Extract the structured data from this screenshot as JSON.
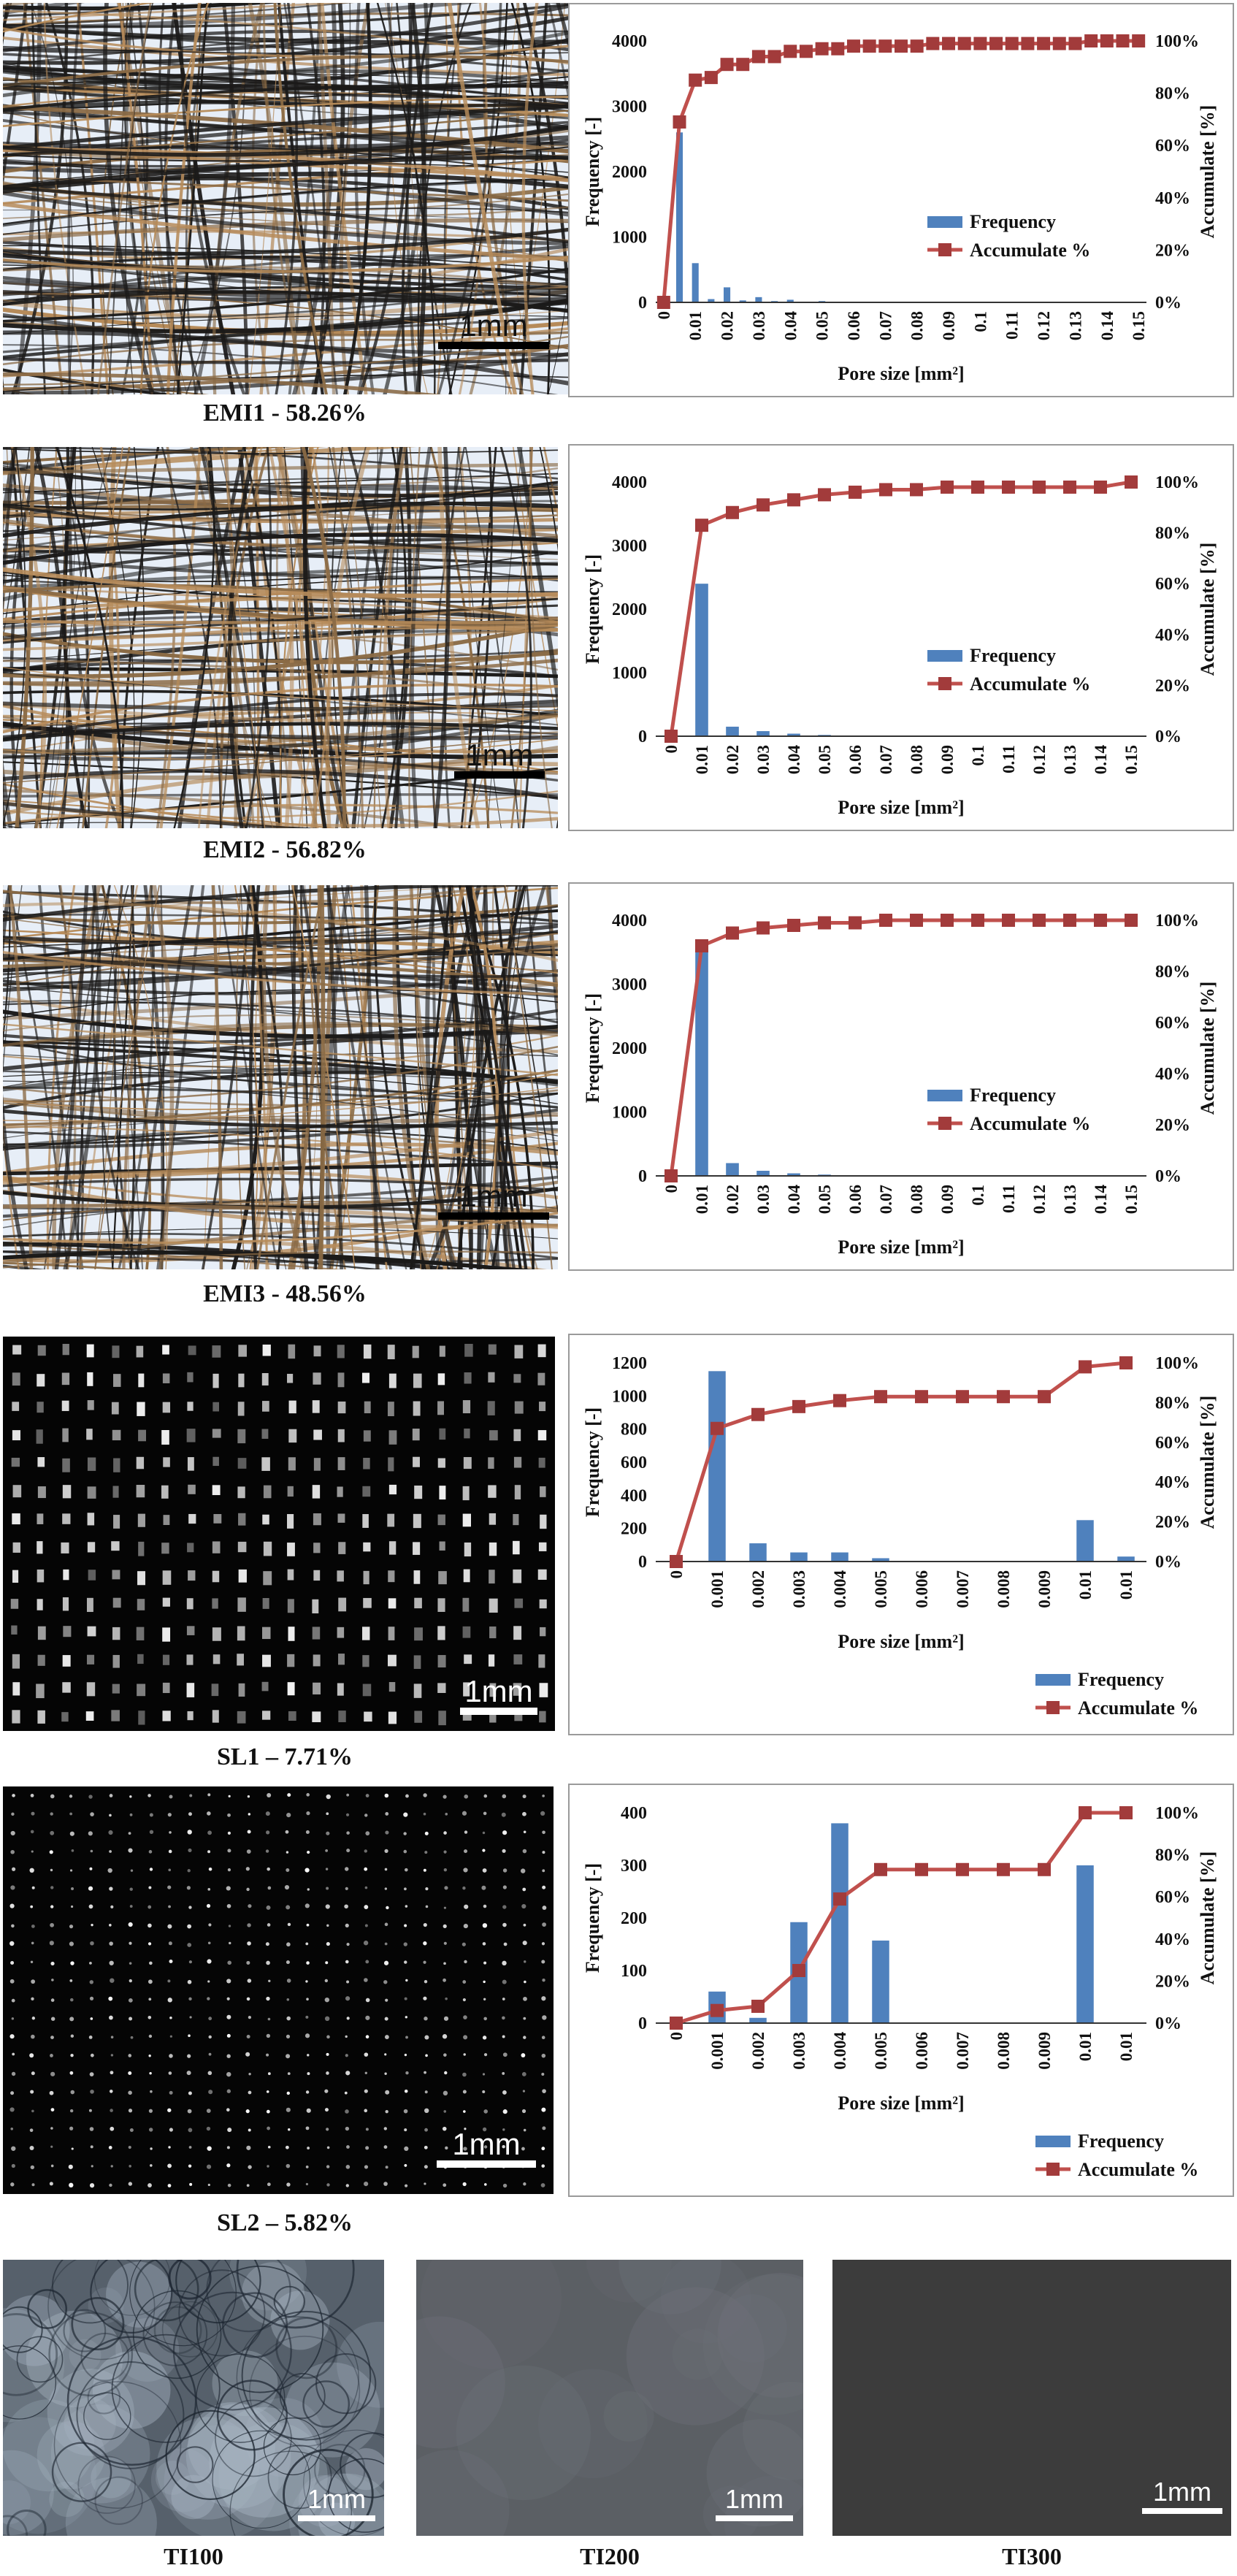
{
  "scale_label": "1mm",
  "axis_labels": {
    "left": "Frequency [-]",
    "right": "Accumulate [%]",
    "x": "Pore size [mm²]"
  },
  "legend": {
    "bar": "Frequency",
    "line": "Accumulate %"
  },
  "colors": {
    "bar": "#4f81bd",
    "line": "#c0504d",
    "marker": "#a23b3b",
    "frame": "#9a9a9a"
  },
  "panels": [
    {
      "caption": "EMI1 - 58.26%",
      "photo_style": "fiber-light",
      "chart_data": {
        "type": "bar+line",
        "categories": [
          "0",
          "0.01",
          "0.01",
          "0.02",
          "0.02",
          "0.03",
          "0.03",
          "0.04",
          "0.04",
          "0.05",
          "0.05",
          "0.06",
          "0.06",
          "0.07",
          "0.07",
          "0.08",
          "0.08",
          "0.09",
          "0.09",
          "0.1",
          "0.1",
          "0.11",
          "0.11",
          "0.12",
          "0.12",
          "0.13",
          "0.13",
          "0.14",
          "0.14",
          "0.15",
          "0.15"
        ],
        "tick_labels": [
          "0",
          "0.01",
          "0.02",
          "0.03",
          "0.04",
          "0.05",
          "0.06",
          "0.07",
          "0.08",
          "0.09",
          "0.1",
          "0.11",
          "0.12",
          "0.13",
          "0.14",
          "0.15"
        ],
        "series": [
          {
            "name": "Frequency",
            "axis": "left",
            "values": [
              0,
              2600,
              600,
              50,
              230,
              30,
              80,
              20,
              40,
              10,
              20,
              5,
              10,
              5,
              5,
              5,
              5,
              5,
              5,
              5,
              5,
              5,
              5,
              5,
              5,
              5,
              5,
              5,
              5,
              5,
              5
            ]
          },
          {
            "name": "Accumulate %",
            "axis": "right",
            "values": [
              0,
              69,
              85,
              86,
              91,
              91,
              94,
              94,
              96,
              96,
              97,
              97,
              98,
              98,
              98,
              98,
              98,
              99,
              99,
              99,
              99,
              99,
              99,
              99,
              99,
              99,
              99,
              100,
              100,
              100,
              100
            ]
          }
        ],
        "ylim_left": [
          0,
          4000
        ],
        "yticks_left": [
          0,
          1000,
          2000,
          3000,
          4000
        ],
        "ylim_right": [
          0,
          100
        ],
        "yticks_right": [
          0,
          20,
          40,
          60,
          80,
          100
        ],
        "legend_position": "bottom-right"
      }
    },
    {
      "caption": "EMI2 - 56.82%",
      "photo_style": "fiber-light",
      "chart_data": {
        "type": "bar+line",
        "categories": [
          "0",
          "0.01",
          "0.02",
          "0.03",
          "0.04",
          "0.05",
          "0.06",
          "0.07",
          "0.08",
          "0.09",
          "0.1",
          "0.11",
          "0.12",
          "0.13",
          "0.14",
          "0.15"
        ],
        "tick_labels": [
          "0",
          "0.01",
          "0.02",
          "0.03",
          "0.04",
          "0.05",
          "0.06",
          "0.07",
          "0.08",
          "0.09",
          "0.1",
          "0.11",
          "0.12",
          "0.13",
          "0.14",
          "0.15"
        ],
        "series": [
          {
            "name": "Frequency",
            "axis": "left",
            "values": [
              0,
              2400,
              150,
              80,
              40,
              20,
              10,
              5,
              5,
              5,
              5,
              5,
              5,
              5,
              5,
              5
            ]
          },
          {
            "name": "Accumulate %",
            "axis": "right",
            "values": [
              0,
              83,
              88,
              91,
              93,
              95,
              96,
              97,
              97,
              98,
              98,
              98,
              98,
              98,
              98,
              100
            ]
          }
        ],
        "ylim_left": [
          0,
          4000
        ],
        "yticks_left": [
          0,
          1000,
          2000,
          3000,
          4000
        ],
        "ylim_right": [
          0,
          100
        ],
        "yticks_right": [
          0,
          20,
          40,
          60,
          80,
          100
        ],
        "legend_position": "bottom-right"
      }
    },
    {
      "caption": "EMI3 - 48.56%",
      "photo_style": "fiber-light",
      "chart_data": {
        "type": "bar+line",
        "categories": [
          "0",
          "0.01",
          "0.02",
          "0.03",
          "0.04",
          "0.05",
          "0.06",
          "0.07",
          "0.08",
          "0.09",
          "0.1",
          "0.11",
          "0.12",
          "0.13",
          "0.14",
          "0.15"
        ],
        "tick_labels": [
          "0",
          "0.01",
          "0.02",
          "0.03",
          "0.04",
          "0.05",
          "0.06",
          "0.07",
          "0.08",
          "0.09",
          "0.1",
          "0.11",
          "0.12",
          "0.13",
          "0.14",
          "0.15"
        ],
        "series": [
          {
            "name": "Frequency",
            "axis": "left",
            "values": [
              0,
              3600,
              200,
              80,
              40,
              20,
              10,
              5,
              5,
              5,
              5,
              5,
              5,
              5,
              5,
              5
            ]
          },
          {
            "name": "Accumulate %",
            "axis": "right",
            "values": [
              0,
              90,
              95,
              97,
              98,
              99,
              99,
              100,
              100,
              100,
              100,
              100,
              100,
              100,
              100,
              100
            ]
          }
        ],
        "ylim_left": [
          0,
          4000
        ],
        "yticks_left": [
          0,
          1000,
          2000,
          3000,
          4000
        ],
        "ylim_right": [
          0,
          100
        ],
        "yticks_right": [
          0,
          20,
          40,
          60,
          80,
          100
        ],
        "legend_position": "bottom-right"
      }
    },
    {
      "caption": "SL1 – 7.71%",
      "photo_style": "mesh-dense",
      "chart_data": {
        "type": "bar+line",
        "categories": [
          "0",
          "0.001",
          "0.002",
          "0.003",
          "0.004",
          "0.005",
          "0.006",
          "0.007",
          "0.008",
          "0.009",
          "0.01",
          "0.01"
        ],
        "tick_labels": [
          "0",
          "0.001",
          "0.002",
          "0.003",
          "0.004",
          "0.005",
          "0.006",
          "0.007",
          "0.008",
          "0.009",
          "0.01",
          "0.01"
        ],
        "series": [
          {
            "name": "Frequency",
            "axis": "left",
            "values": [
              0,
              1150,
              110,
              55,
              55,
              20,
              0,
              0,
              0,
              0,
              250,
              30
            ]
          },
          {
            "name": "Accumulate %",
            "axis": "right",
            "values": [
              0,
              67,
              74,
              78,
              81,
              83,
              83,
              83,
              83,
              83,
              98,
              100
            ]
          }
        ],
        "ylim_left": [
          0,
          1200
        ],
        "yticks_left": [
          0,
          200,
          400,
          600,
          800,
          1000,
          1200
        ],
        "ylim_right": [
          0,
          100
        ],
        "yticks_right": [
          0,
          20,
          40,
          60,
          80,
          100
        ],
        "legend_position": "below-right"
      }
    },
    {
      "caption": "SL2 – 5.82%",
      "photo_style": "mesh-sparse",
      "chart_data": {
        "type": "bar+line",
        "categories": [
          "0",
          "0.001",
          "0.002",
          "0.003",
          "0.004",
          "0.005",
          "0.006",
          "0.007",
          "0.008",
          "0.009",
          "0.01",
          "0.01"
        ],
        "tick_labels": [
          "0",
          "0.001",
          "0.002",
          "0.003",
          "0.004",
          "0.005",
          "0.006",
          "0.007",
          "0.008",
          "0.009",
          "0.01",
          "0.01"
        ],
        "series": [
          {
            "name": "Frequency",
            "axis": "left",
            "values": [
              0,
              60,
              10,
              192,
              380,
              157,
              0,
              0,
              0,
              0,
              300,
              0
            ]
          },
          {
            "name": "Accumulate %",
            "axis": "right",
            "values": [
              0,
              6,
              8,
              25,
              59,
              73,
              73,
              73,
              73,
              73,
              100,
              100
            ]
          }
        ],
        "ylim_left": [
          0,
          400
        ],
        "yticks_left": [
          0,
          100,
          200,
          300,
          400
        ],
        "ylim_right": [
          0,
          100
        ],
        "yticks_right": [
          0,
          20,
          40,
          60,
          80,
          100
        ],
        "legend_position": "below-right"
      }
    }
  ],
  "ti_panels": [
    {
      "caption": "TI100",
      "photo_style": "ti-fibrous"
    },
    {
      "caption": "TI200",
      "photo_style": "ti-gray"
    },
    {
      "caption": "TI300",
      "photo_style": "ti-dark"
    }
  ]
}
